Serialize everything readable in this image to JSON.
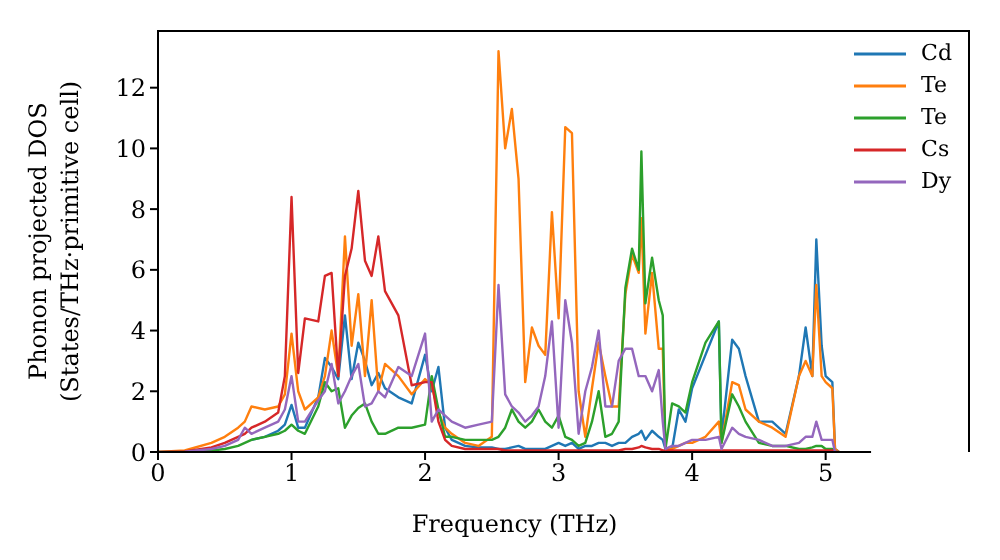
{
  "chart_data": {
    "type": "line",
    "xlabel": "Frequency (THz)",
    "ylabel": "Phonon projected DOS (States/THz·primitive cell)",
    "x": [
      0,
      0.2,
      0.4,
      0.5,
      0.6,
      0.65,
      0.7,
      0.8,
      0.9,
      0.95,
      1.0,
      1.05,
      1.1,
      1.2,
      1.25,
      1.3,
      1.35,
      1.4,
      1.45,
      1.5,
      1.55,
      1.6,
      1.65,
      1.7,
      1.8,
      1.9,
      2.0,
      2.05,
      2.1,
      2.15,
      2.2,
      2.3,
      2.4,
      2.5,
      2.55,
      2.6,
      2.65,
      2.7,
      2.75,
      2.8,
      2.85,
      2.9,
      2.95,
      3.0,
      3.05,
      3.1,
      3.15,
      3.2,
      3.25,
      3.3,
      3.35,
      3.4,
      3.45,
      3.5,
      3.55,
      3.6,
      3.62,
      3.65,
      3.7,
      3.75,
      3.78,
      3.8,
      3.85,
      3.9,
      3.95,
      4.0,
      4.1,
      4.2,
      4.22,
      4.3,
      4.35,
      4.4,
      4.5,
      4.6,
      4.7,
      4.8,
      4.85,
      4.9,
      4.93,
      4.97,
      5.0,
      5.05,
      5.07,
      5.1
    ],
    "series": [
      {
        "name": "Cd",
        "color": "#1f77b4",
        "values": [
          null,
          null,
          null,
          null,
          null,
          null,
          0.4,
          0.5,
          0.7,
          0.9,
          1.55,
          0.8,
          0.8,
          1.8,
          3.1,
          2.8,
          2.4,
          4.5,
          2.4,
          3.6,
          3.0,
          2.2,
          2.6,
          2.1,
          1.8,
          1.6,
          3.2,
          2.0,
          2.8,
          0.8,
          0.4,
          0.2,
          0.15,
          0.15,
          0.1,
          0.1,
          0.15,
          0.2,
          0.1,
          0.1,
          0.1,
          0.1,
          0.2,
          0.3,
          0.2,
          0.3,
          0.1,
          0.2,
          0.2,
          0.3,
          0.3,
          0.2,
          0.3,
          0.3,
          0.5,
          0.6,
          0.7,
          0.4,
          0.7,
          0.5,
          0.4,
          0.1,
          0.1,
          1.4,
          1.0,
          2.1,
          3.2,
          4.3,
          0.5,
          3.7,
          3.4,
          2.5,
          1.0,
          1.0,
          0.6,
          2.5,
          4.1,
          2.5,
          7.0,
          3.5,
          2.5,
          2.3,
          0.1,
          0
        ]
      },
      {
        "name": "Te",
        "color": "#ff7f0e",
        "values": [
          0,
          0.05,
          0.3,
          0.5,
          0.8,
          1.0,
          1.5,
          1.4,
          1.5,
          1.9,
          3.9,
          2.0,
          1.4,
          1.8,
          2.5,
          4.0,
          2.5,
          7.1,
          3.5,
          5.2,
          2.5,
          5.0,
          2.0,
          2.9,
          2.5,
          1.9,
          2.4,
          2.2,
          1.3,
          0.8,
          0.6,
          0.3,
          0.2,
          0.5,
          13.2,
          10.0,
          11.3,
          9.0,
          2.3,
          4.1,
          3.5,
          3.2,
          7.9,
          4.4,
          10.7,
          10.5,
          2.0,
          0.5,
          2.1,
          3.6,
          2.5,
          1.5,
          1.5,
          5.2,
          6.5,
          5.9,
          7.7,
          3.9,
          5.9,
          3.4,
          3.4,
          0.1,
          0.1,
          0.2,
          0.3,
          0.3,
          0.5,
          1.0,
          0.3,
          2.3,
          2.2,
          1.4,
          1.0,
          0.8,
          0.5,
          2.5,
          3.0,
          2.5,
          5.5,
          2.5,
          2.3,
          2.1,
          0.1,
          0
        ]
      },
      {
        "name": "Te",
        "color": "#2ca02c",
        "values": [
          0,
          0.01,
          0.05,
          0.1,
          0.2,
          0.3,
          0.4,
          0.5,
          0.6,
          0.7,
          0.9,
          0.7,
          0.6,
          1.5,
          2.3,
          2.0,
          2.1,
          0.8,
          1.2,
          1.45,
          1.6,
          1.0,
          0.6,
          0.6,
          0.8,
          0.8,
          0.9,
          2.5,
          1.4,
          0.5,
          0.5,
          0.4,
          0.4,
          0.4,
          0.5,
          0.8,
          1.4,
          1.0,
          0.8,
          1.0,
          1.4,
          1.0,
          0.8,
          1.2,
          0.5,
          0.4,
          0.2,
          0.3,
          1.0,
          2.0,
          0.5,
          0.6,
          1.0,
          5.4,
          6.7,
          6.0,
          9.9,
          4.9,
          6.4,
          5.0,
          4.5,
          0.1,
          1.6,
          1.5,
          1.3,
          2.3,
          3.6,
          4.3,
          0.3,
          1.9,
          1.5,
          1.0,
          0.3,
          0.2,
          0.2,
          0.1,
          0.1,
          0.15,
          0.2,
          0.2,
          0.1,
          0.1,
          0,
          0
        ]
      },
      {
        "name": "Cs",
        "color": "#d62728",
        "values": [
          0,
          0.02,
          0.15,
          0.3,
          0.5,
          0.6,
          0.8,
          1.0,
          1.3,
          2.5,
          8.4,
          2.6,
          4.4,
          4.3,
          5.8,
          5.9,
          2.5,
          5.8,
          6.7,
          8.6,
          6.3,
          5.8,
          7.1,
          5.3,
          4.5,
          2.2,
          2.3,
          2.3,
          1.0,
          0.4,
          0.2,
          0.1,
          0.1,
          0.1,
          0.1,
          0.05,
          0.05,
          0.05,
          0.05,
          0.05,
          0.05,
          0.05,
          0.05,
          0.05,
          0.05,
          0.05,
          0.05,
          0.05,
          0.05,
          0.05,
          0.05,
          0.05,
          0.05,
          0.1,
          0.1,
          0.15,
          0.2,
          0.15,
          0.1,
          0.1,
          0.05,
          0.05,
          0.05,
          0.05,
          0.05,
          0.05,
          0.05,
          0.05,
          0.05,
          0.05,
          0.05,
          0.05,
          0.05,
          0.05,
          0.05,
          0.05,
          0.05,
          0.05,
          0.05,
          0.05,
          0.05,
          0.05,
          0,
          0
        ]
      },
      {
        "name": "Dy",
        "color": "#9467bd",
        "values": [
          null,
          0.01,
          0.1,
          0.2,
          0.4,
          0.8,
          0.6,
          0.8,
          1.0,
          1.4,
          2.5,
          1.0,
          1.0,
          1.7,
          2.0,
          2.9,
          1.6,
          2.0,
          2.5,
          2.9,
          1.5,
          1.6,
          2.0,
          1.8,
          2.8,
          2.5,
          3.9,
          1.0,
          1.4,
          1.2,
          1.0,
          0.8,
          0.9,
          1.0,
          5.5,
          1.9,
          1.5,
          1.3,
          1.0,
          1.2,
          1.5,
          2.5,
          4.3,
          0.8,
          5.0,
          3.6,
          0.6,
          2.0,
          2.8,
          4.0,
          1.5,
          1.5,
          3.0,
          3.4,
          3.4,
          2.5,
          2.5,
          2.5,
          2.0,
          2.7,
          1.0,
          0.1,
          0.2,
          0.2,
          0.3,
          0.4,
          0.4,
          0.5,
          0.1,
          0.8,
          0.6,
          0.5,
          0.4,
          0.2,
          0.2,
          0.3,
          0.5,
          0.5,
          1.0,
          0.4,
          0.4,
          0.4,
          0,
          0
        ]
      }
    ],
    "xlim": [
      0,
      5.34
    ],
    "xticks": [
      0,
      1,
      2,
      3,
      4,
      5
    ],
    "ylim": [
      0,
      13.9
    ],
    "yticks": [
      0,
      2,
      4,
      6,
      8,
      10,
      12
    ],
    "legend": "top right",
    "grid": false,
    "marker": "none",
    "line_style": "solid"
  }
}
